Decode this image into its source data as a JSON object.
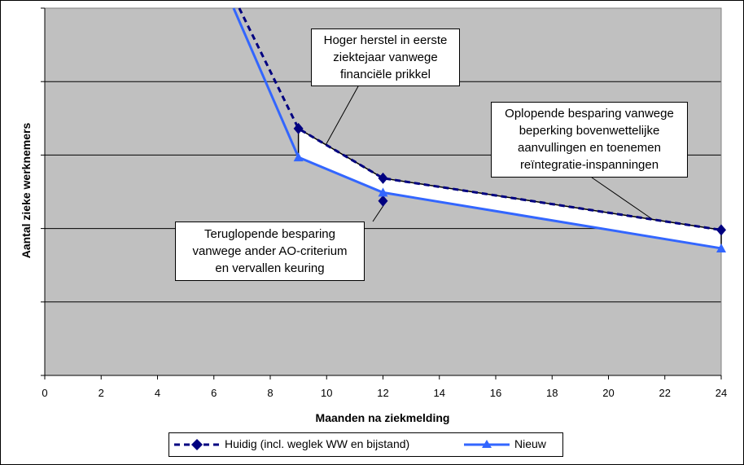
{
  "chart_data": {
    "type": "line",
    "title": "",
    "xlabel": "Maanden na ziekmelding",
    "ylabel": "Aantal zieke werknemers",
    "xlim": [
      0,
      24
    ],
    "x_ticks": [
      "0",
      "2",
      "4",
      "6",
      "8",
      "10",
      "12",
      "14",
      "16",
      "18",
      "20",
      "22",
      "24"
    ],
    "y_gridlines": 5,
    "grid": true,
    "legend_position": "bottom",
    "plot_background": "#c0c0c0",
    "series": [
      {
        "name": "Huidig (incl. weglek WW en bijstand)",
        "style": "dashed",
        "marker": "diamond",
        "color": "#000080",
        "points": [
          [
            6.9,
            100
          ],
          [
            9,
            67.2
          ],
          [
            12,
            53.7
          ],
          [
            24,
            39.6
          ]
        ]
      },
      {
        "name": "Nieuw",
        "style": "solid",
        "marker": "triangle",
        "color": "#3366ff",
        "points": [
          [
            6.7,
            100
          ],
          [
            9,
            59.4
          ],
          [
            12,
            49.8
          ],
          [
            24,
            34.6
          ]
        ]
      }
    ],
    "extra_markers": [
      [
        12,
        47.5
      ]
    ],
    "annotations": [
      {
        "lines": [
          "Hoger herstel in eerste",
          "ziektejaar vanwege",
          "financiële prikkel"
        ]
      },
      {
        "lines": [
          "Oplopende besparing vanwege",
          "beperking bovenwettelijke",
          "aanvullingen en toenemen",
          "reïntegratie-inspanningen"
        ]
      },
      {
        "lines": [
          "Teruglopende besparing",
          "vanwege ander AO-criterium",
          "en vervallen keuring"
        ]
      }
    ]
  }
}
